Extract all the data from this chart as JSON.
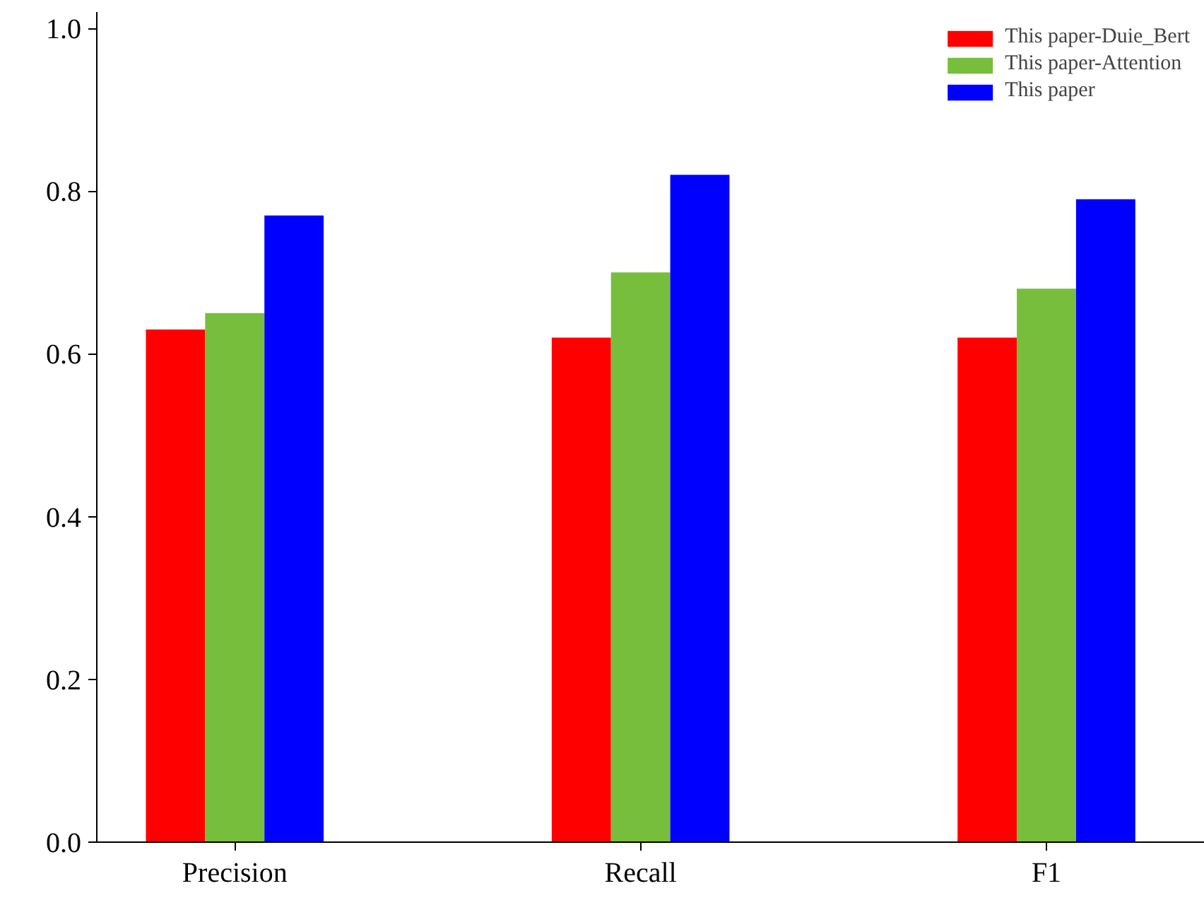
{
  "chart_data": {
    "type": "bar",
    "categories": [
      "Precision",
      "Recall",
      "F1"
    ],
    "series": [
      {
        "name": "This paper-Duie_Bert",
        "color": "#ff0000",
        "values": [
          0.63,
          0.62,
          0.62
        ]
      },
      {
        "name": "This paper-Attention",
        "color": "#77be3c",
        "values": [
          0.65,
          0.7,
          0.68
        ]
      },
      {
        "name": "This paper",
        "color": "#0000ff",
        "values": [
          0.77,
          0.82,
          0.79
        ]
      }
    ],
    "ylim": [
      0,
      1.02
    ],
    "yticks": [
      {
        "value": 0,
        "label": "0.0"
      },
      0.2,
      0.4,
      0.6,
      0.8,
      {
        "value": 1,
        "label": "1.0"
      }
    ],
    "grid": false,
    "legend": "top right"
  }
}
